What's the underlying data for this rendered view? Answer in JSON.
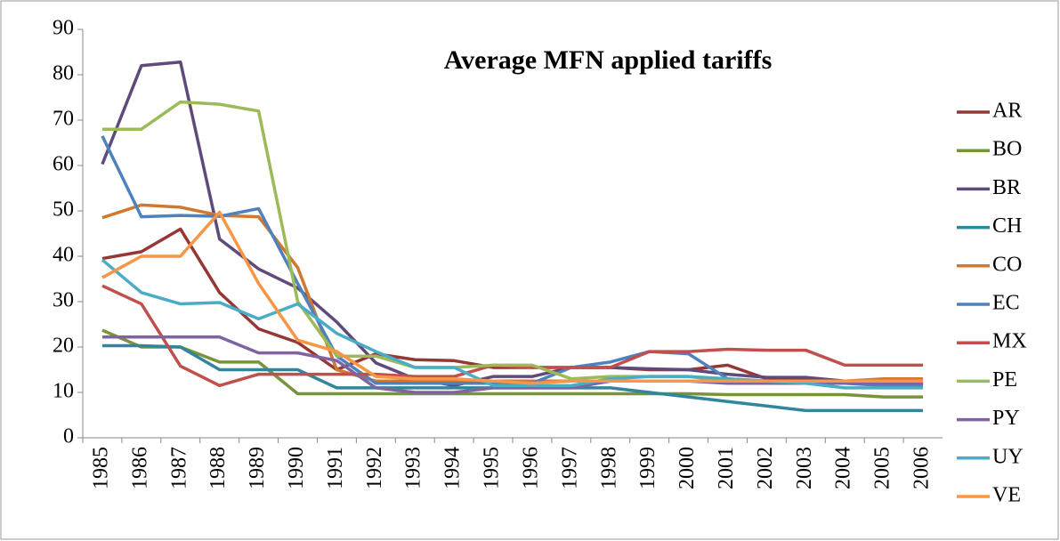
{
  "chart_data": {
    "type": "line",
    "title": "Average MFN applied tariffs",
    "categories": [
      "1985",
      "1986",
      "1987",
      "1988",
      "1989",
      "1990",
      "1991",
      "1992",
      "1993",
      "1994",
      "1995",
      "1996",
      "1997",
      "1998",
      "1999",
      "2000",
      "2001",
      "2002",
      "2003",
      "2004",
      "2005",
      "2006"
    ],
    "ylim": [
      0,
      90
    ],
    "yticks": [
      0,
      10,
      20,
      30,
      40,
      50,
      60,
      70,
      80,
      90
    ],
    "grid": false,
    "legend": "right",
    "series": [
      {
        "name": "AR",
        "color": "#953735",
        "values": [
          39.5,
          41,
          46,
          32,
          24,
          21,
          15,
          18.5,
          17.2,
          17,
          15.5,
          15.5,
          15.5,
          15.5,
          15,
          15,
          16,
          13,
          13,
          12,
          12,
          12
        ]
      },
      {
        "name": "BO",
        "color": "#77933c",
        "values": [
          23.7,
          20,
          20,
          16.7,
          16.7,
          9.7,
          9.7,
          9.7,
          9.7,
          9.7,
          9.7,
          9.7,
          9.7,
          9.7,
          9.7,
          9.7,
          9.5,
          9.5,
          9.5,
          9.5,
          9,
          9
        ]
      },
      {
        "name": "BR",
        "color": "#604a7b",
        "values": [
          60.3,
          82,
          82.8,
          43.8,
          37.2,
          33,
          25.5,
          16.5,
          13,
          11.5,
          13.5,
          13.5,
          15.5,
          15.5,
          15.2,
          15,
          14,
          13.3,
          13.3,
          12.5,
          12,
          12
        ]
      },
      {
        "name": "CH",
        "color": "#31859c",
        "values": [
          20.3,
          20.3,
          20,
          15,
          15,
          15,
          11,
          11,
          11,
          11,
          11,
          11,
          11,
          11,
          10,
          9,
          8,
          7,
          6,
          6,
          6,
          6
        ]
      },
      {
        "name": "CO",
        "color": "#d0782f",
        "values": [
          48.5,
          51.3,
          50.8,
          49,
          48.7,
          37.5,
          15,
          12.5,
          12.5,
          12.5,
          12.5,
          12.5,
          12.5,
          12.5,
          12.5,
          12.5,
          12.5,
          12.5,
          12.5,
          12.5,
          13,
          13
        ]
      },
      {
        "name": "EC",
        "color": "#4f81bd",
        "values": [
          66.5,
          48.7,
          49,
          48.8,
          50.5,
          34,
          18,
          12,
          12,
          12,
          12,
          12,
          15.5,
          16.7,
          19,
          18.5,
          13,
          12.5,
          12,
          12,
          11.5,
          11.5
        ]
      },
      {
        "name": "MX",
        "color": "#c0504d",
        "values": [
          33.5,
          29.5,
          15.8,
          11.5,
          14,
          14,
          14,
          14,
          13.5,
          13.5,
          16,
          15.5,
          15.5,
          15.5,
          19,
          19,
          19.5,
          19.3,
          19.3,
          16,
          16,
          16
        ]
      },
      {
        "name": "PE",
        "color": "#9bbb59",
        "values": [
          68,
          68,
          74,
          73.5,
          72,
          30,
          18,
          18,
          15.5,
          15.5,
          16,
          16,
          13,
          13.5,
          13.5,
          13.5,
          12.5,
          12,
          12,
          12,
          12,
          12
        ]
      },
      {
        "name": "PY",
        "color": "#8064a2",
        "values": [
          22.2,
          22.2,
          22.2,
          22.2,
          18.7,
          18.7,
          17,
          11,
          10,
          10,
          11,
          11,
          11,
          12.5,
          12.5,
          12.5,
          12,
          12,
          12,
          12,
          12,
          12
        ]
      },
      {
        "name": "UY",
        "color": "#4bacc6",
        "values": [
          39.2,
          32,
          29.5,
          29.8,
          26.2,
          29.5,
          23,
          19,
          15.5,
          15.5,
          11.5,
          11.5,
          11.5,
          13,
          13.5,
          13.5,
          13,
          12.5,
          12,
          11,
          11,
          11
        ]
      },
      {
        "name": "VE",
        "color": "#f79646",
        "values": [
          35.3,
          40,
          40,
          49.7,
          34,
          21.5,
          19,
          13.5,
          13,
          13,
          12.5,
          12,
          12.5,
          12.5,
          12.5,
          12.5,
          12.5,
          12.5,
          12.5,
          12.5,
          12.5,
          12.5
        ]
      }
    ]
  }
}
